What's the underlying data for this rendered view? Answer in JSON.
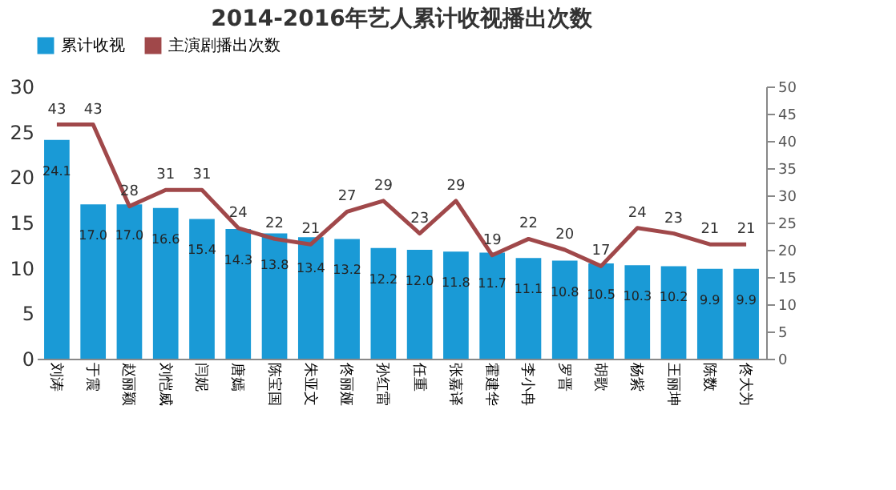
{
  "chart_data": {
    "type": "bar",
    "title": "2014-2016年艺人累计收视播出次数",
    "categories": [
      "刘涛",
      "于震",
      "赵丽颖",
      "刘恺威",
      "闫妮",
      "唐嫣",
      "陈宝国",
      "朱亚文",
      "佟丽娅",
      "孙红雷",
      "任重",
      "张嘉译",
      "霍建华",
      "李小冉",
      "罗晋",
      "胡歌",
      "杨紫",
      "王丽坤",
      "陈数",
      "佟大为"
    ],
    "series": [
      {
        "name": "累计收视",
        "color": "#1a9ad6",
        "values": [
          24.1,
          17.0,
          17.0,
          16.6,
          15.4,
          14.3,
          13.8,
          13.4,
          13.2,
          12.2,
          12.0,
          11.8,
          11.7,
          11.1,
          10.8,
          10.5,
          10.3,
          10.2,
          9.9,
          9.9
        ],
        "value_labels": [
          "24.1",
          "17.0",
          "17.0",
          "16.6",
          "15.4",
          "14.3",
          "13.8",
          "13.4",
          "13.2",
          "12.2",
          "12.0",
          "11.8",
          "11.7",
          "11.1",
          "10.8",
          "10.5",
          "10.3",
          "10.2",
          "9.9",
          "9.9"
        ]
      },
      {
        "name": "主演剧播出次数",
        "type": "line",
        "axis": "y2",
        "color": "#a0484a",
        "values": [
          43,
          43,
          28,
          31,
          31,
          24,
          22,
          21,
          27,
          29,
          23,
          29,
          19,
          22,
          20,
          17,
          24,
          23,
          21,
          21
        ]
      }
    ],
    "ylim": [
      0,
      30
    ],
    "yticks": [
      0,
      5,
      10,
      15,
      20,
      25,
      30
    ],
    "y2lim": [
      0,
      50
    ],
    "y2ticks": [
      0,
      5,
      10,
      15,
      20,
      25,
      30,
      35,
      40,
      45,
      50
    ],
    "data_labels": true,
    "grid": false,
    "legend": "top",
    "marker": "none",
    "line_style": "solid"
  }
}
